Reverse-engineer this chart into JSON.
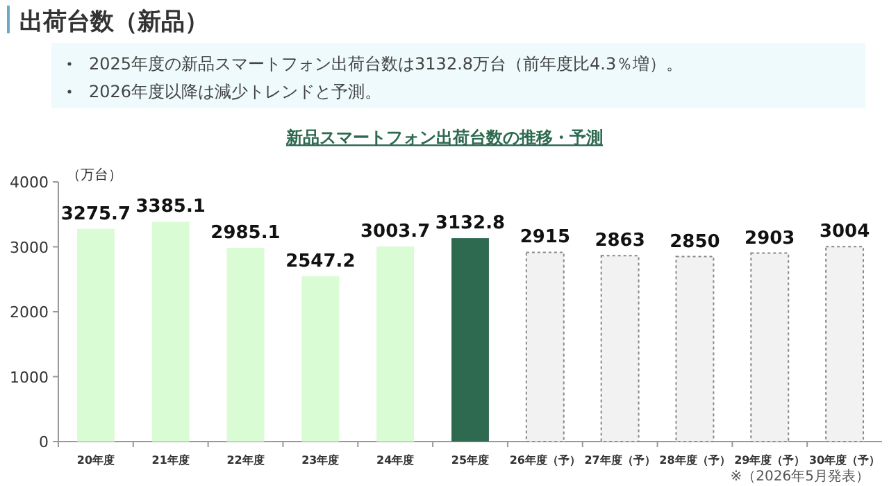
{
  "chart_data": {
    "type": "bar",
    "title": "出荷台数（新品）",
    "subtitle": "新品スマートフォン出荷台数の推移・予測",
    "ylabel": "（万台）",
    "annotations": [
      "2025年度の新品スマートフォン出荷台数は3132.8万台（前年度比4.3％増）。",
      "2026年度以降は減少トレンドと予測。",
      "※（2026年5月発表）"
    ],
    "categories": [
      "20年度",
      "21年度",
      "22年度",
      "23年度",
      "24年度",
      "25年度",
      "26年度（予）",
      "27年度（予）",
      "28年度（予）",
      "29年度（予）",
      "30年度（予）"
    ],
    "series": [
      {
        "colors": [
          "#dafcd4",
          "#dafcd4",
          "#dafcd4",
          "#dafcd4",
          "#dafcd4",
          "#2e6a50",
          null,
          null,
          null,
          null,
          null
        ],
        "values": [
          3275.7,
          3385.1,
          2985.1,
          2547.2,
          3003.7,
          3132.8,
          null,
          null,
          null,
          null,
          null
        ]
      },
      {
        "color": "#f2f2f2",
        "line_style": "dashed",
        "values": [
          null,
          null,
          null,
          null,
          null,
          null,
          2915,
          2863,
          2850,
          2903,
          3004
        ]
      }
    ],
    "ylim": [
      0,
      4000
    ],
    "yticks": [
      0,
      1000,
      2000,
      3000,
      4000
    ],
    "grid": false,
    "data_labels": true
  }
}
